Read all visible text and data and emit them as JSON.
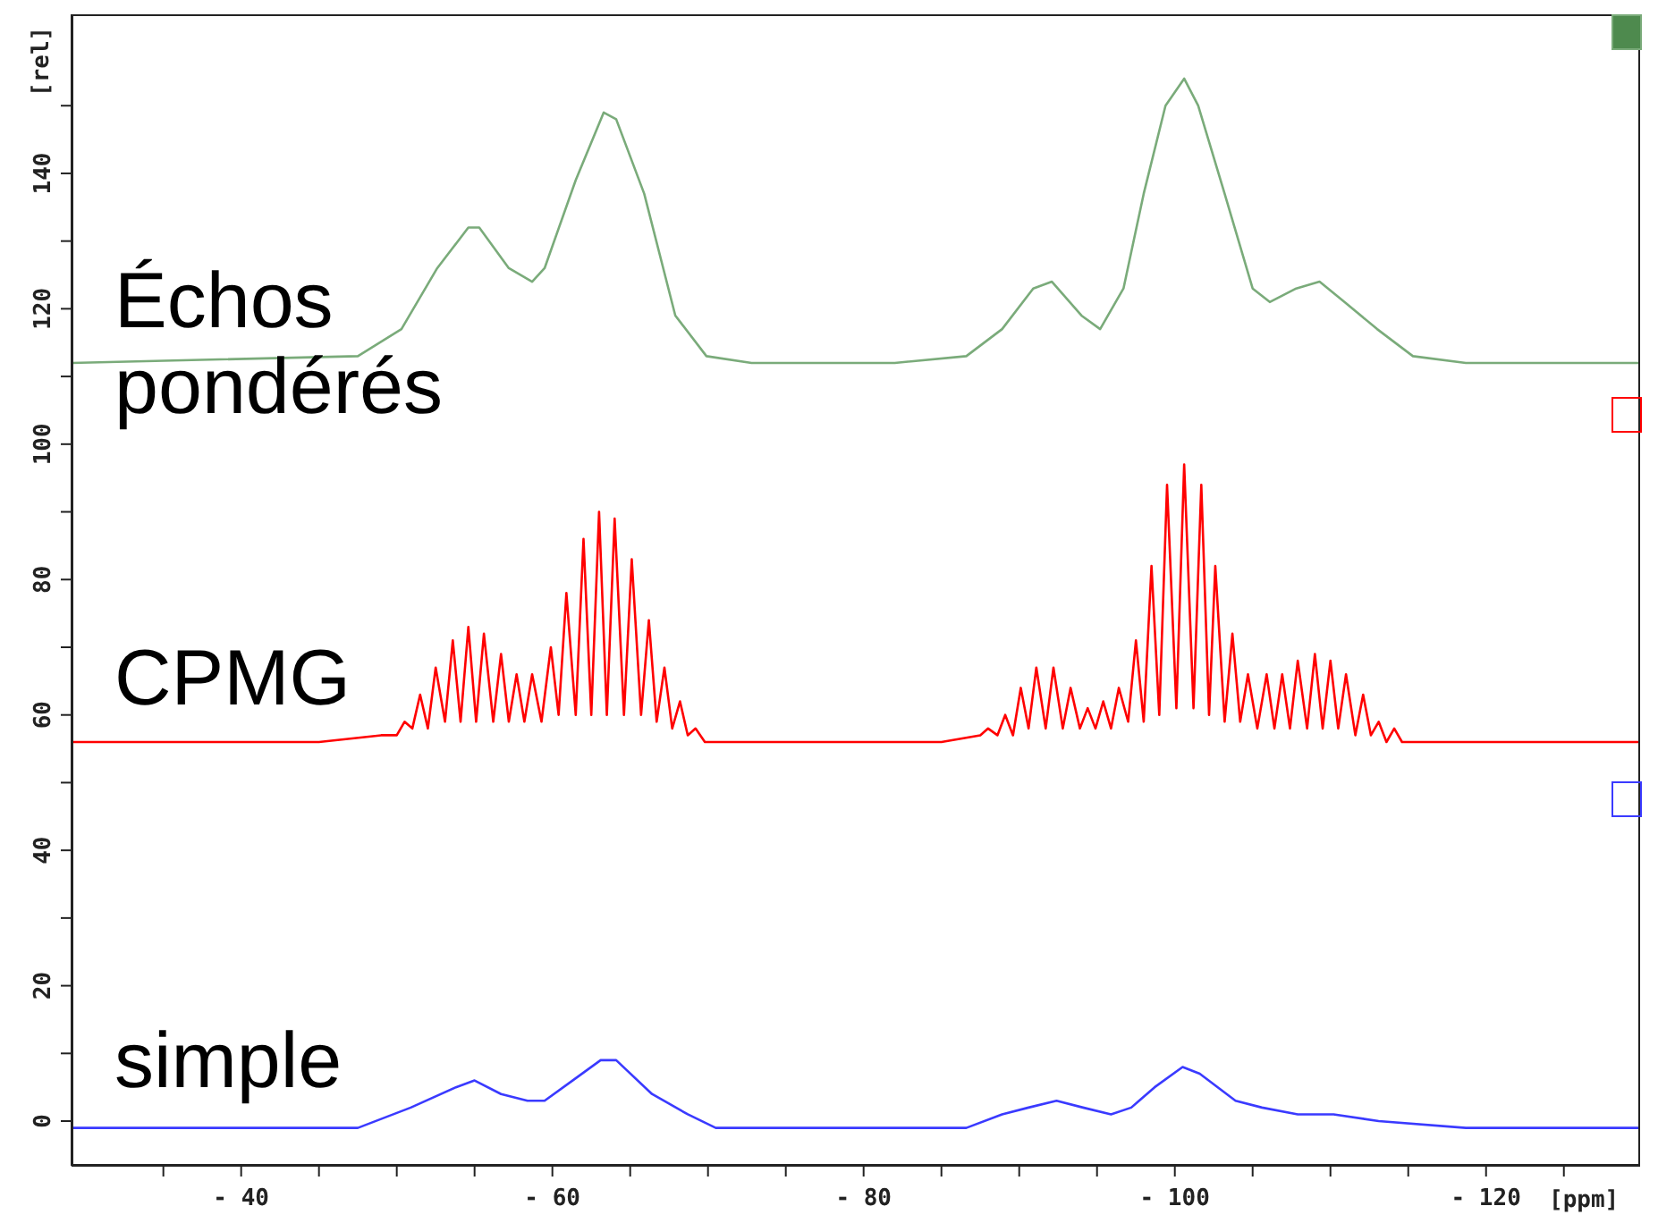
{
  "chart_data": {
    "type": "line",
    "xlabel": "[ppm]",
    "ylabel": "[rel]",
    "xlim": [
      -29.1,
      -129.9
    ],
    "xticks": [
      {
        "value": -35,
        "label": null
      },
      {
        "value": -40,
        "label": "- 40"
      },
      {
        "value": -45,
        "label": null
      },
      {
        "value": -50,
        "label": null
      },
      {
        "value": -55,
        "label": null
      },
      {
        "value": -60,
        "label": "- 60"
      },
      {
        "value": -65,
        "label": null
      },
      {
        "value": -70,
        "label": null
      },
      {
        "value": -75,
        "label": null
      },
      {
        "value": -80,
        "label": "- 80"
      },
      {
        "value": -85,
        "label": null
      },
      {
        "value": -90,
        "label": null
      },
      {
        "value": -95,
        "label": null
      },
      {
        "value": -100,
        "label": "- 100"
      },
      {
        "value": -105,
        "label": null
      },
      {
        "value": -110,
        "label": null
      },
      {
        "value": -115,
        "label": null
      },
      {
        "value": -120,
        "label": "- 120"
      },
      {
        "value": -125,
        "label": null
      }
    ],
    "ylim": [
      -6.6,
      163.5
    ],
    "yticks": [
      0,
      {
        "value": 10,
        "label": null
      },
      20,
      {
        "value": 30,
        "label": null
      },
      40,
      {
        "value": 50,
        "label": null
      },
      60,
      {
        "value": 70,
        "label": null
      },
      80,
      {
        "value": 90,
        "label": null
      },
      100,
      {
        "value": 110,
        "label": null
      },
      120,
      {
        "value": 130,
        "label": null
      },
      140,
      {
        "value": 150,
        "label": null
      }
    ],
    "marker": "none",
    "line_style": "solid",
    "series": [
      {
        "name": "Échos pondérés",
        "color": "#7aab7a",
        "x": [
          -29.1,
          -47.5,
          -50.3,
          -52.6,
          -54.6,
          -55.3,
          -57.2,
          -58.7,
          -59.5,
          -61.5,
          -63.3,
          -64.1,
          -65.9,
          -67.9,
          -69.9,
          -72.8,
          -82.0,
          -86.6,
          -88.9,
          -90.9,
          -92.1,
          -94.0,
          -95.2,
          -96.7,
          -98.0,
          -99.4,
          -100.6,
          -101.5,
          -103.2,
          -105.0,
          -106.1,
          -107.8,
          -109.3,
          -110.9,
          -113.0,
          -115.3,
          -118.7,
          -129.9
        ],
        "values": [
          112,
          113,
          117,
          126,
          132,
          132,
          126,
          124,
          126,
          139,
          149,
          148,
          137,
          119,
          113,
          112,
          112,
          113,
          117,
          123,
          124,
          119,
          117,
          123,
          137,
          150,
          154,
          150,
          137,
          123,
          121,
          123,
          124,
          121,
          117,
          113,
          112,
          112
        ]
      },
      {
        "name": "CPMG",
        "color": "#ff0000",
        "x": [
          -29.1,
          -45,
          -49,
          -50.0,
          -50.5,
          -51.0,
          -51.5,
          -52.0,
          -52.5,
          -53.1,
          -53.6,
          -54.1,
          -54.6,
          -55.1,
          -55.6,
          -56.2,
          -56.7,
          -57.2,
          -57.7,
          -58.2,
          -58.7,
          -59.3,
          -59.9,
          -60.4,
          -60.9,
          -61.5,
          -62.0,
          -62.5,
          -63.0,
          -63.5,
          -64.0,
          -64.6,
          -65.1,
          -65.7,
          -66.2,
          -66.7,
          -67.2,
          -67.7,
          -68.2,
          -68.7,
          -69.2,
          -69.8,
          -75,
          -85,
          -87.5,
          -88.0,
          -88.6,
          -89.1,
          -89.6,
          -90.1,
          -90.6,
          -91.1,
          -91.7,
          -92.2,
          -92.8,
          -93.3,
          -93.9,
          -94.4,
          -94.9,
          -95.4,
          -95.9,
          -96.4,
          -97.0,
          -97.5,
          -98.0,
          -98.5,
          -99.0,
          -99.5,
          -100.1,
          -100.6,
          -101.2,
          -101.7,
          -102.2,
          -102.6,
          -103.2,
          -103.7,
          -104.2,
          -104.7,
          -105.3,
          -105.9,
          -106.4,
          -106.9,
          -107.4,
          -107.9,
          -108.5,
          -109.0,
          -109.5,
          -110.0,
          -110.5,
          -111.0,
          -111.6,
          -112.1,
          -112.6,
          -113.1,
          -113.6,
          -114.1,
          -114.6,
          -120,
          -129.9
        ],
        "values": [
          56,
          56,
          57,
          57,
          59,
          58,
          63,
          58,
          67,
          59,
          71,
          59,
          73,
          59,
          72,
          59,
          69,
          59,
          66,
          59,
          66,
          59,
          70,
          60,
          78,
          60,
          86,
          60,
          90,
          60,
          89,
          60,
          83,
          60,
          74,
          59,
          67,
          58,
          62,
          57,
          58,
          56,
          56,
          56,
          57,
          58,
          57,
          60,
          57,
          64,
          58,
          67,
          58,
          67,
          58,
          64,
          58,
          61,
          58,
          62,
          58,
          64,
          59,
          71,
          59,
          82,
          60,
          94,
          61,
          97,
          61,
          94,
          60,
          82,
          59,
          72,
          59,
          66,
          58,
          66,
          58,
          66,
          58,
          68,
          58,
          69,
          58,
          68,
          58,
          66,
          57,
          63,
          57,
          59,
          56,
          58,
          56,
          56,
          56
        ]
      },
      {
        "name": "simple",
        "color": "#3a3aff",
        "x": [
          -29.1,
          -47.5,
          -50.9,
          -53.8,
          -55.0,
          -56.7,
          -58.4,
          -59.5,
          -61.3,
          -63.1,
          -64.1,
          -66.4,
          -68.7,
          -70.5,
          -82.0,
          -86.6,
          -88.9,
          -90.6,
          -92.4,
          -94.1,
          -95.9,
          -97.2,
          -98.7,
          -100.5,
          -101.6,
          -103.9,
          -105.6,
          -107.9,
          -110.2,
          -113.1,
          -118.7,
          -129.9
        ],
        "values": [
          -1,
          -1,
          2,
          5,
          6,
          4,
          3,
          3,
          6,
          9,
          9,
          4,
          1,
          -1,
          -1,
          -1,
          1,
          2,
          3,
          2,
          1,
          2,
          5,
          8,
          7,
          3,
          2,
          1,
          1,
          0,
          -1,
          -1
        ]
      }
    ]
  }
}
